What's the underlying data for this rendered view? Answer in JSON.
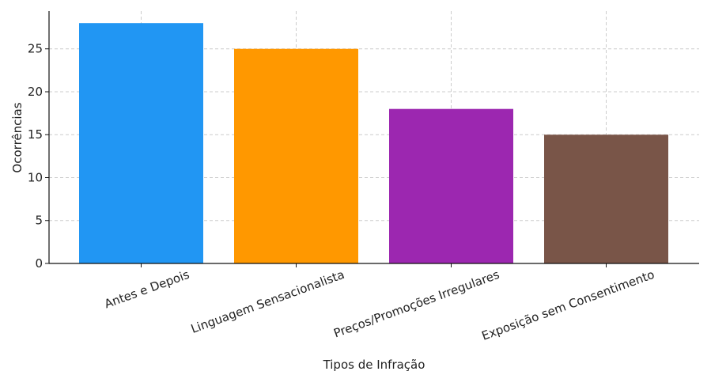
{
  "chart_data": {
    "type": "bar",
    "title": "",
    "xlabel": "Tipos de Infração",
    "ylabel": "Ocorrências",
    "categories": [
      "Antes e Depois",
      "Linguagem Sensacionalista",
      "Preços/Promoções Irregulares",
      "Exposição sem Consentimento"
    ],
    "values": [
      28,
      25,
      18,
      15
    ],
    "colors": [
      "#2196F3",
      "#FF9800",
      "#9C27B0",
      "#795548"
    ],
    "ylim": [
      0,
      29.4
    ],
    "yticks": [
      0,
      5,
      10,
      15,
      20,
      25
    ],
    "grid": true,
    "legend": "none"
  }
}
